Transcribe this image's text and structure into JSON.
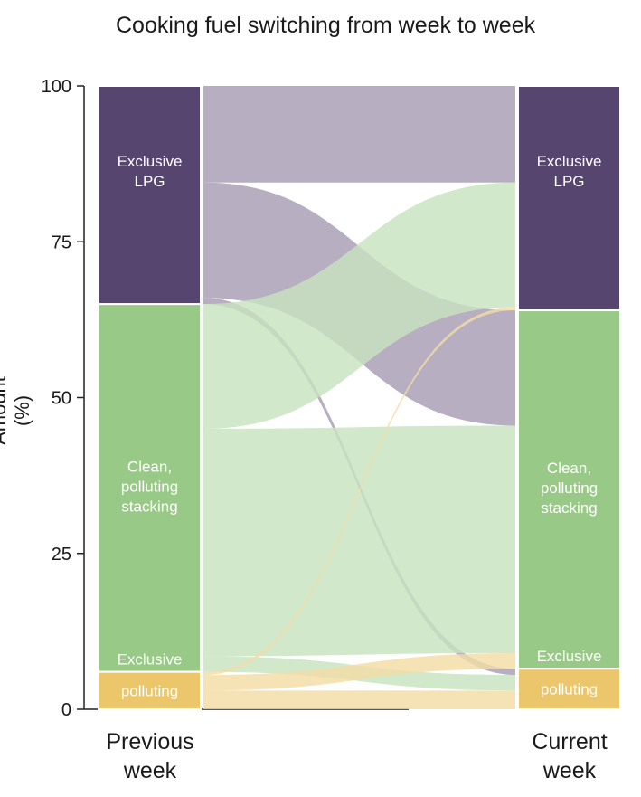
{
  "chart_data": {
    "type": "sankey",
    "title": "Cooking fuel switching from week to week",
    "ylabel": "Amount (%)",
    "ylim": [
      0,
      100
    ],
    "yticks": [
      0,
      25,
      50,
      75,
      100
    ],
    "columns": [
      "Previous week",
      "Current week"
    ],
    "categories": [
      {
        "key": "lpg",
        "label": "Exclusive LPG",
        "label_lines": [
          "Exclusive",
          "LPG"
        ],
        "color": "#56466f",
        "light_color": "#a89cb4"
      },
      {
        "key": "stack",
        "label": "Clean, polluting stacking",
        "label_lines": [
          "Clean,",
          "polluting",
          "stacking"
        ],
        "color": "#98c986",
        "light_color": "#c8e3bf"
      },
      {
        "key": "poll",
        "label": "Exclusive polluting",
        "label_lines": [
          "Exclusive",
          "polluting"
        ],
        "color": "#ecc66a",
        "light_color": "#f3dda6"
      }
    ],
    "previous_week": {
      "lpg": 35,
      "stack": 59,
      "poll": 6
    },
    "current_week": {
      "lpg": 36,
      "stack": 57.5,
      "poll": 6.5
    },
    "flows": [
      {
        "from": "lpg",
        "to": "lpg",
        "value": 15.5
      },
      {
        "from": "lpg",
        "to": "stack",
        "value": 18.5
      },
      {
        "from": "lpg",
        "to": "poll",
        "value": 1
      },
      {
        "from": "stack",
        "to": "lpg",
        "value": 20
      },
      {
        "from": "stack",
        "to": "stack",
        "value": 36.5
      },
      {
        "from": "stack",
        "to": "poll",
        "value": 2.5
      },
      {
        "from": "poll",
        "to": "lpg",
        "value": 0.5
      },
      {
        "from": "poll",
        "to": "stack",
        "value": 2.5
      },
      {
        "from": "poll",
        "to": "poll",
        "value": 3
      }
    ]
  }
}
